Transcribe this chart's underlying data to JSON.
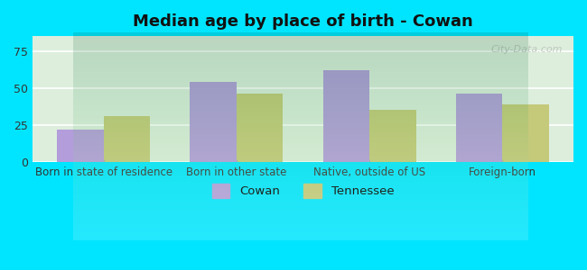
{
  "title": "Median age by place of birth - Cowan",
  "categories": [
    "Born in state of residence",
    "Born in other state",
    "Native, outside of US",
    "Foreign-born"
  ],
  "cowan_values": [
    22,
    54,
    62,
    46
  ],
  "tennessee_values": [
    31,
    46,
    35,
    39
  ],
  "cowan_color": "#b39ddb",
  "tennessee_color": "#c5c97a",
  "ylim": [
    0,
    85
  ],
  "yticks": [
    0,
    25,
    50,
    75
  ],
  "background_outer": "#00e5ff",
  "background_inner_top": "#f0f8f0",
  "background_inner_bottom": "#e8f5e8",
  "grid_color": "#ffffff",
  "bar_width": 0.35,
  "legend_cowan": "Cowan",
  "legend_tennessee": "Tennessee",
  "watermark": "City-Data.com"
}
